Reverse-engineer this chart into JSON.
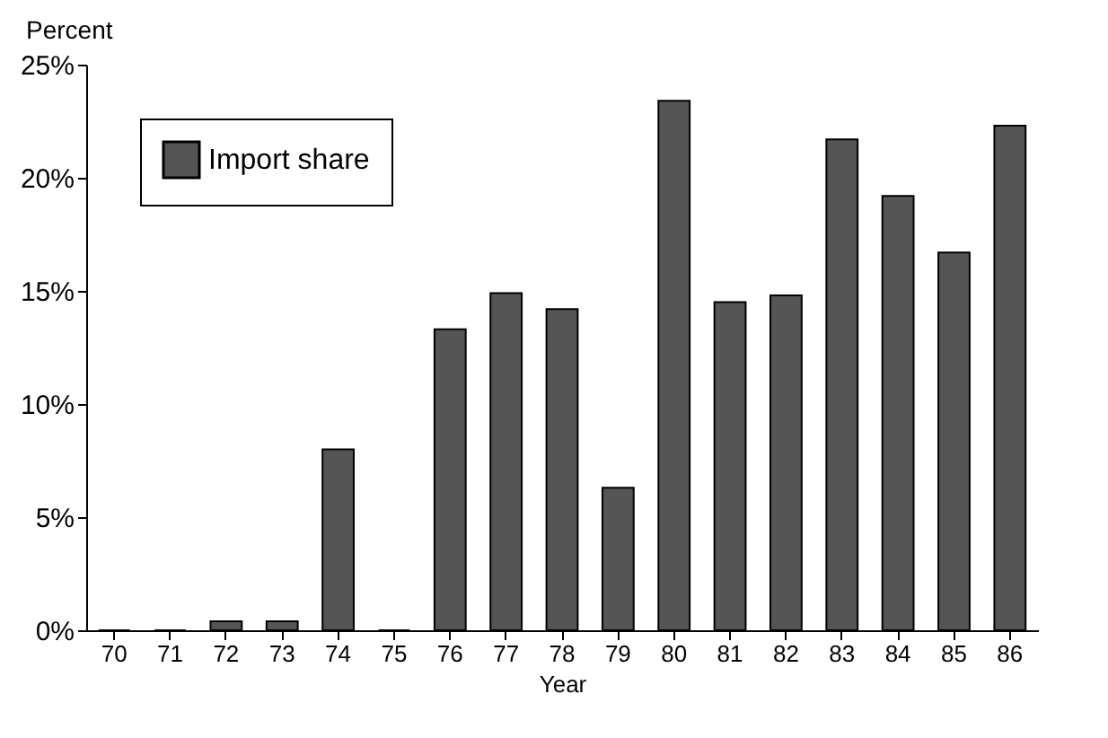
{
  "chart_data": {
    "type": "bar",
    "xlabel": "Year",
    "ylabel": "Percent",
    "categories": [
      "70",
      "71",
      "72",
      "73",
      "74",
      "75",
      "76",
      "77",
      "78",
      "79",
      "80",
      "81",
      "82",
      "83",
      "84",
      "85",
      "86"
    ],
    "series": [
      {
        "name": "Import share",
        "color": "#555555",
        "values": [
          0,
          0,
          0.4,
          0.4,
          8.0,
          0,
          13.3,
          14.9,
          14.2,
          6.3,
          23.4,
          14.5,
          14.8,
          21.7,
          19.2,
          16.7,
          22.3
        ]
      }
    ],
    "ylim": [
      0,
      25
    ],
    "yticks": [
      {
        "value": 0,
        "label": "0%"
      },
      {
        "value": 5,
        "label": "5%"
      },
      {
        "value": 10,
        "label": "10%"
      },
      {
        "value": 15,
        "label": "15%"
      },
      {
        "value": 20,
        "label": "20%"
      },
      {
        "value": 25,
        "label": "25%"
      }
    ],
    "grid": false,
    "legend": "top left"
  }
}
